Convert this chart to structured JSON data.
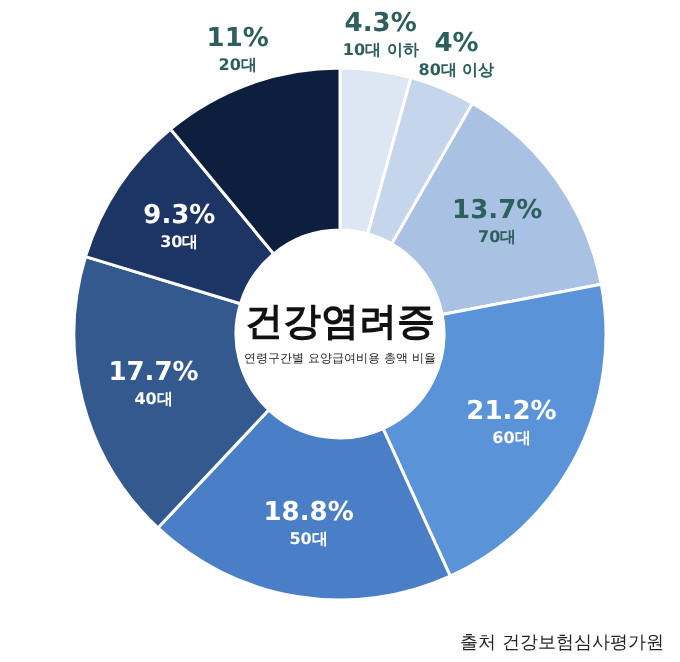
{
  "chart_data": {
    "type": "donut",
    "title": "건강염려증",
    "subtitle": "연령구간별 요양급여비용 총액 비율",
    "categories": [
      "10대 이하",
      "80대 이상",
      "70대",
      "60대",
      "50대",
      "40대",
      "30대",
      "20대"
    ],
    "values": [
      4.3,
      4,
      13.7,
      21.2,
      18.8,
      17.7,
      9.3,
      11
    ],
    "value_labels": [
      "4.3%",
      "4%",
      "13.7%",
      "21.2%",
      "18.8%",
      "17.7%",
      "9.3%",
      "11%"
    ],
    "colors": [
      "#dde6f3",
      "#c5d5ec",
      "#a9c1e3",
      "#5b93d8",
      "#4a7ec6",
      "#33598f",
      "#1c3564",
      "#0e1e3e"
    ],
    "annotations": [
      "출처 건강보험심사평가원"
    ]
  }
}
